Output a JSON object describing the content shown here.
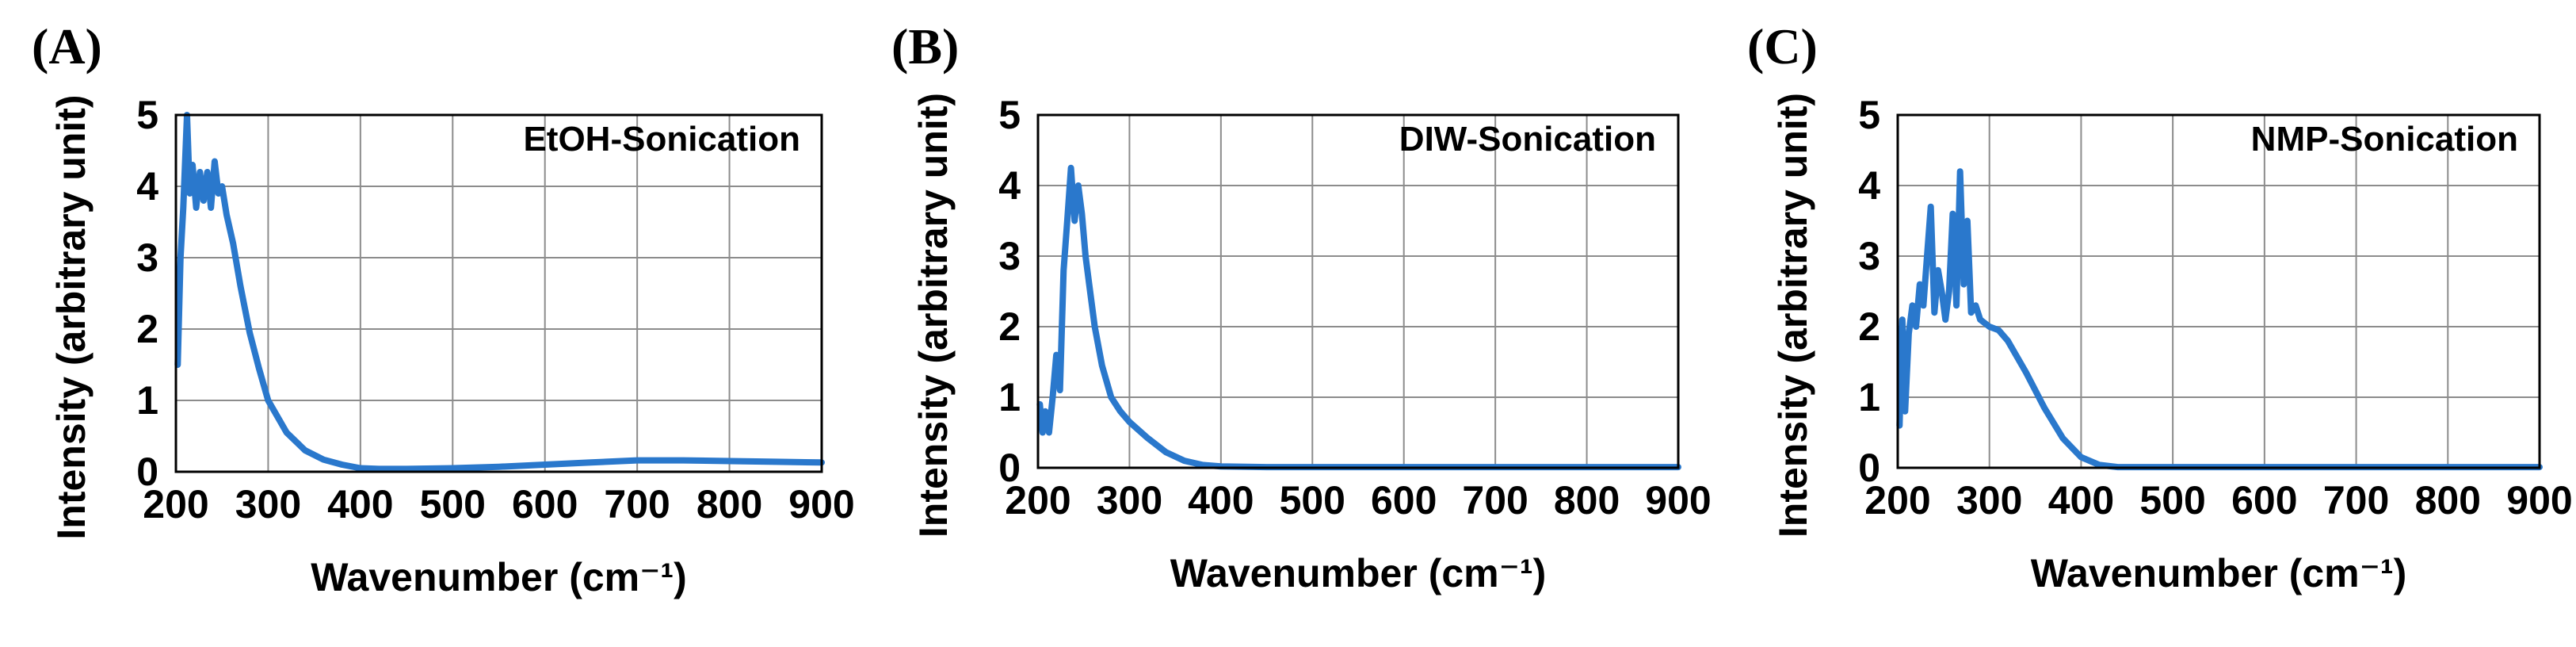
{
  "colors": {
    "series": "#2a78cc",
    "grid": "#8c8c8c",
    "frame": "#000000"
  },
  "chart_data": [
    {
      "type": "line",
      "panel_label": "(A)",
      "annotation": "EtOH-Sonication",
      "xlabel": "Wavenumber (cm⁻¹)",
      "ylabel": "Intensity (arbitrary unit)",
      "xlim": [
        200,
        900
      ],
      "ylim": [
        0,
        5
      ],
      "xticks": [
        "200",
        "300",
        "400",
        "500",
        "600",
        "700",
        "800",
        "900"
      ],
      "yticks": [
        "0",
        "1",
        "2",
        "3",
        "4",
        "5"
      ],
      "grid": true,
      "series": [
        {
          "x": [
            202,
            205,
            208,
            212,
            215,
            218,
            222,
            226,
            230,
            234,
            238,
            242,
            246,
            250,
            255,
            262,
            270,
            280,
            290,
            300,
            320,
            340,
            360,
            380,
            400,
            420,
            450,
            500,
            550,
            600,
            650,
            700,
            750,
            800,
            850,
            900
          ],
          "y": [
            1.5,
            3.0,
            3.7,
            5.0,
            3.9,
            4.3,
            3.7,
            4.2,
            3.8,
            4.2,
            3.7,
            4.35,
            3.9,
            4.0,
            3.6,
            3.2,
            2.6,
            1.95,
            1.45,
            1.0,
            0.55,
            0.3,
            0.17,
            0.1,
            0.05,
            0.04,
            0.04,
            0.05,
            0.07,
            0.1,
            0.13,
            0.16,
            0.16,
            0.15,
            0.14,
            0.13
          ]
        }
      ]
    },
    {
      "type": "line",
      "panel_label": "(B)",
      "annotation": "DIW-Sonication",
      "xlabel": "Wavenumber (cm⁻¹)",
      "ylabel": "Intensity (arbitrary unit)",
      "xlim": [
        200,
        900
      ],
      "ylim": [
        0,
        5
      ],
      "xticks": [
        "200",
        "300",
        "400",
        "500",
        "600",
        "700",
        "800",
        "900"
      ],
      "yticks": [
        "0",
        "1",
        "2",
        "3",
        "4",
        "5"
      ],
      "grid": true,
      "series": [
        {
          "x": [
            202,
            205,
            208,
            212,
            216,
            220,
            224,
            228,
            232,
            236,
            240,
            244,
            248,
            252,
            256,
            262,
            270,
            280,
            290,
            300,
            320,
            340,
            360,
            380,
            400,
            450,
            500,
            600,
            700,
            800,
            900
          ],
          "y": [
            0.9,
            0.5,
            0.8,
            0.5,
            1.0,
            1.6,
            1.1,
            2.8,
            3.5,
            4.25,
            3.5,
            4.0,
            3.6,
            3.0,
            2.6,
            2.0,
            1.45,
            1.0,
            0.8,
            0.65,
            0.42,
            0.22,
            0.1,
            0.04,
            0.02,
            0.01,
            0.01,
            0.01,
            0.01,
            0.01,
            0.01
          ]
        }
      ]
    },
    {
      "type": "line",
      "panel_label": "(C)",
      "annotation": "NMP-Sonication",
      "xlabel": "Wavenumber (cm⁻¹)",
      "ylabel": "Intensity (arbitrary unit)",
      "xlim": [
        200,
        900
      ],
      "ylim": [
        0,
        5
      ],
      "xticks": [
        "200",
        "300",
        "400",
        "500",
        "600",
        "700",
        "800",
        "900"
      ],
      "yticks": [
        "0",
        "1",
        "2",
        "3",
        "4",
        "5"
      ],
      "grid": true,
      "series": [
        {
          "x": [
            202,
            205,
            208,
            212,
            216,
            220,
            224,
            228,
            232,
            236,
            240,
            244,
            248,
            252,
            256,
            260,
            264,
            268,
            272,
            276,
            280,
            285,
            290,
            300,
            310,
            320,
            340,
            360,
            380,
            400,
            420,
            440,
            460,
            500,
            600,
            700,
            800,
            900
          ],
          "y": [
            0.6,
            2.1,
            0.8,
            1.9,
            2.3,
            2.0,
            2.6,
            2.3,
            3.0,
            3.7,
            2.2,
            2.8,
            2.5,
            2.1,
            2.5,
            3.6,
            2.3,
            4.2,
            2.6,
            3.5,
            2.2,
            2.3,
            2.1,
            2.0,
            1.95,
            1.8,
            1.35,
            0.85,
            0.42,
            0.15,
            0.04,
            0.01,
            0.01,
            0.01,
            0.01,
            0.01,
            0.01,
            0.01
          ]
        }
      ]
    }
  ]
}
